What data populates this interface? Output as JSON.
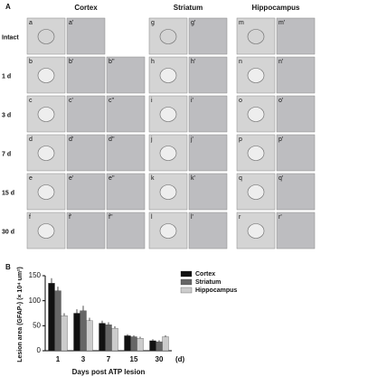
{
  "panel_a": {
    "label": "A",
    "columns": [
      "Cortex",
      "Striatum",
      "Hippocampus"
    ],
    "rows": [
      {
        "label": "Intact",
        "cells": [
          [
            "a",
            "a'"
          ],
          [
            "g",
            "g'"
          ],
          [
            "m",
            "m'"
          ]
        ]
      },
      {
        "label": "1 d",
        "cells": [
          [
            "b",
            "b'",
            "b''"
          ],
          [
            "h",
            "h'"
          ],
          [
            "n",
            "n'"
          ]
        ]
      },
      {
        "label": "3 d",
        "cells": [
          [
            "c",
            "c'",
            "c''"
          ],
          [
            "i",
            "i'"
          ],
          [
            "o",
            "o'"
          ]
        ]
      },
      {
        "label": "7 d",
        "cells": [
          [
            "d",
            "d'",
            "d''"
          ],
          [
            "j",
            "j'"
          ],
          [
            "p",
            "p'"
          ]
        ]
      },
      {
        "label": "15 d",
        "cells": [
          [
            "e",
            "e'",
            "e''"
          ],
          [
            "k",
            "k'"
          ],
          [
            "q",
            "q'"
          ]
        ]
      },
      {
        "label": "30 d",
        "cells": [
          [
            "f",
            "f'",
            "f''"
          ],
          [
            "l",
            "l'"
          ],
          [
            "r",
            "r'"
          ]
        ]
      }
    ]
  },
  "panel_b_label": "B",
  "chart_data": {
    "type": "bar",
    "y_label": "Lesion area (GFAP-) (× 10⁴ um²)",
    "x_label": "Days post ATP lesion",
    "x_unit": "(d)",
    "categories": [
      "1",
      "3",
      "7",
      "15",
      "30"
    ],
    "series": [
      {
        "name": "Cortex",
        "color": "#111111",
        "values": [
          135,
          75,
          55,
          30,
          20
        ],
        "errors": [
          10,
          8,
          5,
          3,
          3
        ]
      },
      {
        "name": "Striatum",
        "color": "#666666",
        "values": [
          120,
          80,
          52,
          28,
          18
        ],
        "errors": [
          8,
          10,
          5,
          3,
          3
        ]
      },
      {
        "name": "Hippocampus",
        "color": "#cccccc",
        "values": [
          70,
          60,
          45,
          25,
          28
        ],
        "errors": [
          5,
          6,
          4,
          3,
          3
        ]
      }
    ],
    "ylim": [
      0,
      150
    ],
    "yticks": [
      0,
      50,
      100,
      150
    ],
    "legend": "upper right"
  }
}
